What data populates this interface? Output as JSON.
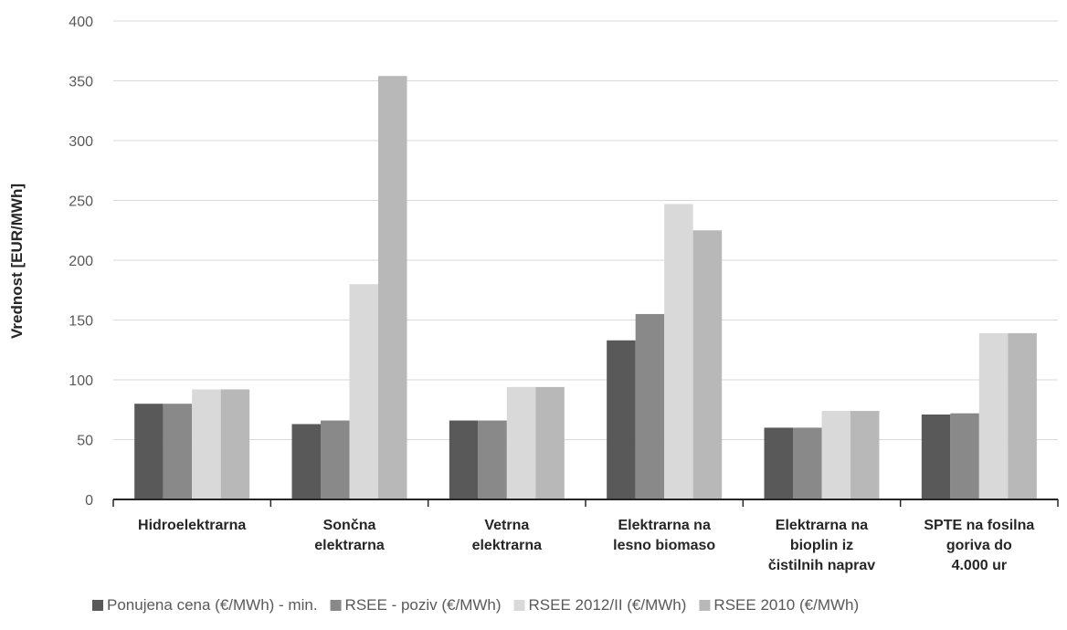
{
  "chart_data": {
    "type": "bar",
    "ylabel": "Vrednost [EUR/MWh]",
    "xlabel": "",
    "ylim": [
      0,
      400
    ],
    "yticks": [
      0,
      50,
      100,
      150,
      200,
      250,
      300,
      350,
      400
    ],
    "grid": true,
    "legend_position": "bottom",
    "categories": [
      [
        "Hidroelektrarna"
      ],
      [
        "Sončna",
        "elektrarna"
      ],
      [
        "Vetrna",
        "elektrarna"
      ],
      [
        "Elektrarna na",
        "lesno biomaso"
      ],
      [
        "Elektrarna na",
        "bioplin iz",
        "čistilnih naprav"
      ],
      [
        "SPTE na fosilna",
        "goriva do",
        "4.000 ur"
      ]
    ],
    "series": [
      {
        "name": "Ponujena cena (€/MWh) - min.",
        "color": "#595959",
        "values": [
          80,
          63,
          66,
          133,
          60,
          71
        ]
      },
      {
        "name": "RSEE - poziv (€/MWh)",
        "color": "#898989",
        "values": [
          80,
          66,
          66,
          155,
          60,
          72
        ]
      },
      {
        "name": "RSEE 2012/II (€/MWh)",
        "color": "#d9d9d9",
        "values": [
          92,
          180,
          94,
          247,
          74,
          139
        ]
      },
      {
        "name": "RSEE 2010 (€/MWh)",
        "color": "#b8b8b8",
        "values": [
          92,
          354,
          94,
          225,
          74,
          139
        ]
      }
    ]
  }
}
